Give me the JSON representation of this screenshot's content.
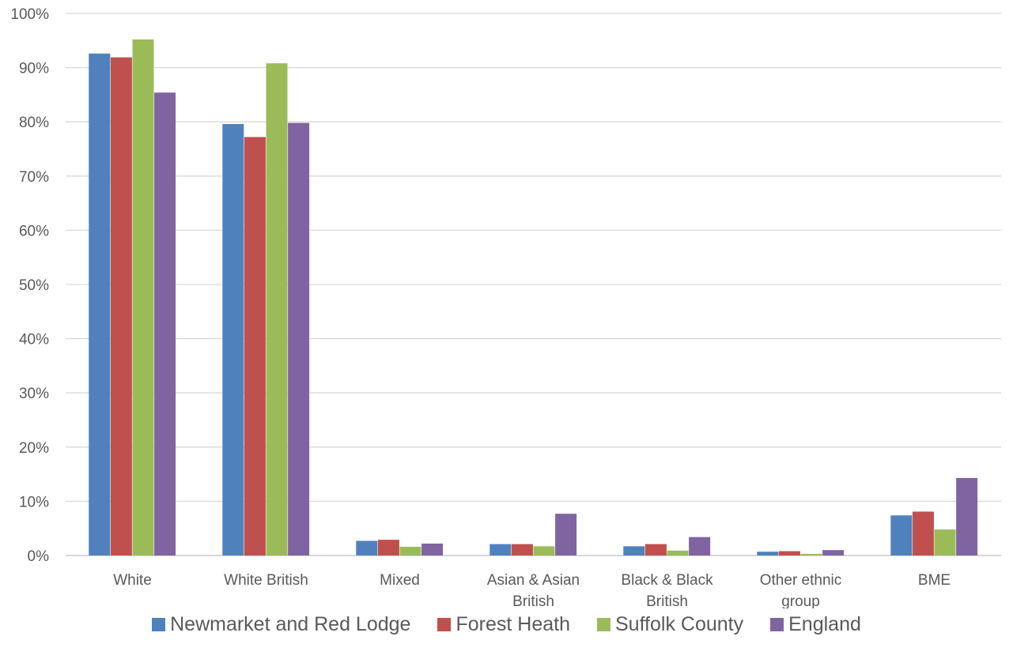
{
  "chart_data": {
    "type": "bar",
    "title": "",
    "xlabel": "",
    "ylabel": "",
    "ylim": [
      0,
      100
    ],
    "yticks": [
      "0%",
      "10%",
      "20%",
      "30%",
      "40%",
      "50%",
      "60%",
      "70%",
      "80%",
      "90%",
      "100%"
    ],
    "grid": true,
    "legend_position": "bottom",
    "categories": [
      [
        "White"
      ],
      [
        "White British"
      ],
      [
        "Mixed"
      ],
      [
        "Asian & Asian",
        "British"
      ],
      [
        "Black & Black",
        "British"
      ],
      [
        "Other ethnic",
        "group"
      ],
      [
        "BME"
      ]
    ],
    "series": [
      {
        "name": "Newmarket and Red Lodge",
        "color": "#4f81bd",
        "values": [
          92.6,
          79.6,
          2.7,
          2.1,
          1.7,
          0.7,
          7.4
        ]
      },
      {
        "name": "Forest Heath",
        "color": "#c0504d",
        "values": [
          91.9,
          77.2,
          2.9,
          2.1,
          2.1,
          0.8,
          8.1
        ]
      },
      {
        "name": "Suffolk County",
        "color": "#9bbb59",
        "values": [
          95.2,
          90.8,
          1.6,
          1.7,
          0.9,
          0.3,
          4.8
        ]
      },
      {
        "name": "England",
        "color": "#8064a2",
        "values": [
          85.4,
          79.8,
          2.2,
          7.7,
          3.4,
          1.0,
          14.3
        ]
      }
    ]
  }
}
